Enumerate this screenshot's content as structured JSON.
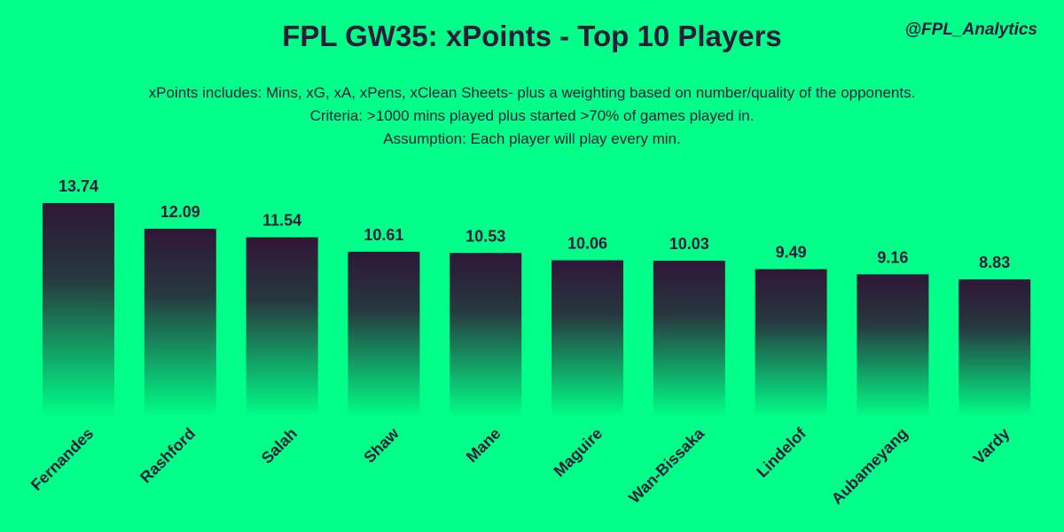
{
  "chart_data": {
    "type": "bar",
    "title": "FPL GW35: xPoints - Top 10 Players",
    "handle": "@FPL_Analytics",
    "subtitle": [
      "xPoints includes: Mins, xG, xA, xPens, xClean Sheets- plus a weighting based on number/quality of the opponents.",
      "Criteria: >1000 mins played plus started >70% of games played in.",
      "Assumption: Each player will play every min."
    ],
    "categories": [
      "Fernandes",
      "Rashford",
      "Salah",
      "Shaw",
      "Mane",
      "Maguire",
      "Wan-Bissaka",
      "Lindelof",
      "Aubameyang",
      "Vardy"
    ],
    "values": [
      13.74,
      12.09,
      11.54,
      10.61,
      10.53,
      10.06,
      10.03,
      9.49,
      9.16,
      8.83
    ],
    "xlabel": "",
    "ylabel": "",
    "grid": false,
    "legend": "none",
    "colors": {
      "background": "#00ff88",
      "bar_top": "#2f1638",
      "bar_bottom": "#00ff88",
      "text": "#2b1a3a"
    }
  }
}
